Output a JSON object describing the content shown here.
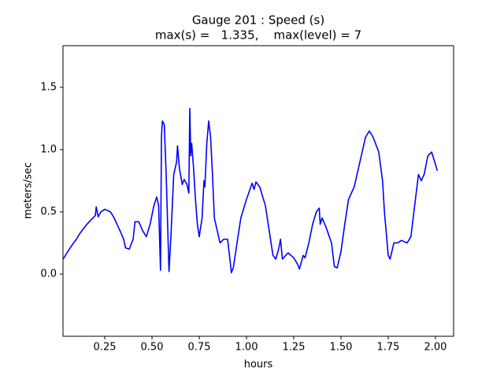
{
  "chart_data": {
    "type": "line",
    "title": "Gauge 201 : Speed (s)",
    "subtitle": "max(s) =   1.335,    max(level) = 7",
    "xlabel": "hours",
    "ylabel": "meters/sec",
    "xlim": [
      0.029,
      2.096
    ],
    "ylim": [
      -0.5,
      1.835
    ],
    "xticks": [
      0.25,
      {
        "value": 0.5,
        "label": "0.50"
      },
      0.75,
      {
        "value": 1.0,
        "label": "1.00"
      },
      1.25,
      {
        "value": 1.5,
        "label": "1.50"
      },
      1.75,
      {
        "value": 2.0,
        "label": "2.00"
      }
    ],
    "yticks": [
      {
        "value": 0.0,
        "label": "0.0"
      },
      0.5,
      {
        "value": 1.0,
        "label": "1.0"
      },
      1.5
    ],
    "grid": false,
    "series": [
      {
        "name": "Speed",
        "color": "#0000ff",
        "x": [
          0.03,
          0.05,
          0.08,
          0.1,
          0.12,
          0.15,
          0.18,
          0.2,
          0.205,
          0.215,
          0.23,
          0.25,
          0.28,
          0.3,
          0.33,
          0.35,
          0.36,
          0.38,
          0.4,
          0.41,
          0.43,
          0.45,
          0.47,
          0.49,
          0.51,
          0.525,
          0.535,
          0.545,
          0.55,
          0.555,
          0.565,
          0.575,
          0.59,
          0.6,
          0.615,
          0.63,
          0.635,
          0.645,
          0.66,
          0.67,
          0.685,
          0.695,
          0.7,
          0.705,
          0.71,
          0.72,
          0.73,
          0.74,
          0.75,
          0.765,
          0.775,
          0.78,
          0.79,
          0.8,
          0.81,
          0.82,
          0.83,
          0.845,
          0.86,
          0.88,
          0.9,
          0.91,
          0.92,
          0.93,
          0.95,
          0.97,
          1.0,
          1.03,
          1.04,
          1.05,
          1.07,
          1.1,
          1.12,
          1.14,
          1.155,
          1.17,
          1.18,
          1.19,
          1.22,
          1.25,
          1.27,
          1.28,
          1.3,
          1.31,
          1.33,
          1.35,
          1.37,
          1.385,
          1.39,
          1.4,
          1.42,
          1.45,
          1.465,
          1.48,
          1.5,
          1.52,
          1.54,
          1.57,
          1.6,
          1.63,
          1.65,
          1.67,
          1.7,
          1.72,
          1.73,
          1.75,
          1.76,
          1.78,
          1.8,
          1.82,
          1.85,
          1.87,
          1.89,
          1.91,
          1.925,
          1.94,
          1.96,
          1.98,
          2.0,
          2.01
        ],
        "values": [
          0.12,
          0.17,
          0.24,
          0.28,
          0.33,
          0.39,
          0.44,
          0.47,
          0.54,
          0.46,
          0.5,
          0.52,
          0.5,
          0.45,
          0.35,
          0.28,
          0.21,
          0.2,
          0.28,
          0.42,
          0.42,
          0.35,
          0.3,
          0.4,
          0.55,
          0.62,
          0.55,
          0.03,
          1.1,
          1.23,
          1.2,
          0.8,
          0.02,
          0.3,
          0.8,
          0.9,
          1.03,
          0.85,
          0.72,
          0.76,
          0.72,
          0.65,
          1.33,
          0.95,
          1.05,
          0.85,
          0.6,
          0.4,
          0.3,
          0.45,
          0.75,
          0.7,
          1.05,
          1.23,
          1.1,
          0.8,
          0.45,
          0.35,
          0.25,
          0.28,
          0.28,
          0.15,
          0.01,
          0.05,
          0.25,
          0.45,
          0.6,
          0.73,
          0.68,
          0.74,
          0.7,
          0.55,
          0.35,
          0.15,
          0.12,
          0.2,
          0.28,
          0.12,
          0.17,
          0.13,
          0.08,
          0.04,
          0.15,
          0.13,
          0.25,
          0.4,
          0.5,
          0.53,
          0.4,
          0.45,
          0.38,
          0.25,
          0.06,
          0.05,
          0.18,
          0.4,
          0.6,
          0.7,
          0.9,
          1.1,
          1.15,
          1.1,
          0.98,
          0.75,
          0.5,
          0.15,
          0.12,
          0.25,
          0.25,
          0.27,
          0.25,
          0.3,
          0.55,
          0.8,
          0.75,
          0.8,
          0.95,
          0.98,
          0.88,
          0.83
        ]
      }
    ]
  }
}
